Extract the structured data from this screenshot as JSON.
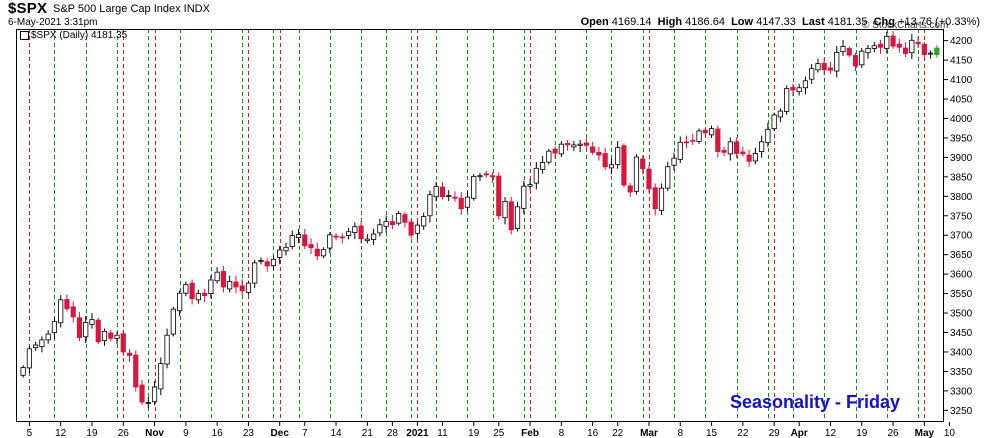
{
  "header": {
    "symbol": "$SPX",
    "name": "S&P 500 Large Cap Index INDX",
    "timestamp": "6-May-2021 3:31pm",
    "watermark": "© StockCharts.com",
    "open_label": "Open",
    "open": "4169.14",
    "high_label": "High",
    "high": "4186.64",
    "low_label": "Low",
    "low": "4147.33",
    "last_label": "Last",
    "last": "4181.35",
    "chg_label": "Chg",
    "chg": "+13.76 (+0.33%)",
    "series_label": "$SPX (Daily) 4181.35"
  },
  "annotation": "Seasonality - Friday",
  "colors": {
    "up": "#ffffff",
    "down": "#d6173f",
    "friday": "#1a8a1a",
    "monday": "#cc2222",
    "last": "#22aa22",
    "annotation": "#1111cc"
  },
  "chart_data": {
    "type": "candlestick",
    "title": "$SPX S&P 500 Large Cap Index INDX",
    "ylim": [
      3220,
      4230
    ],
    "y_ticks": [
      3250,
      3300,
      3350,
      3400,
      3450,
      3500,
      3550,
      3600,
      3650,
      3700,
      3750,
      3800,
      3850,
      3900,
      3950,
      4000,
      4050,
      4100,
      4150,
      4200
    ],
    "x_ticks": [
      {
        "i": 1,
        "label": "5"
      },
      {
        "i": 6,
        "label": "12"
      },
      {
        "i": 11,
        "label": "19"
      },
      {
        "i": 16,
        "label": "26"
      },
      {
        "i": 21,
        "label": "Nov"
      },
      {
        "i": 26,
        "label": "9"
      },
      {
        "i": 31,
        "label": "16"
      },
      {
        "i": 36,
        "label": "23"
      },
      {
        "i": 41,
        "label": "Dec"
      },
      {
        "i": 45,
        "label": "7"
      },
      {
        "i": 50,
        "label": "14"
      },
      {
        "i": 55,
        "label": "21"
      },
      {
        "i": 59,
        "label": "28"
      },
      {
        "i": 63,
        "label": "2021"
      },
      {
        "i": 67,
        "label": "11"
      },
      {
        "i": 72,
        "label": "19"
      },
      {
        "i": 76,
        "label": "25"
      },
      {
        "i": 81,
        "label": "Feb"
      },
      {
        "i": 86,
        "label": "8"
      },
      {
        "i": 91,
        "label": "16"
      },
      {
        "i": 95,
        "label": "22"
      },
      {
        "i": 100,
        "label": "Mar"
      },
      {
        "i": 105,
        "label": "8"
      },
      {
        "i": 110,
        "label": "15"
      },
      {
        "i": 115,
        "label": "22"
      },
      {
        "i": 120,
        "label": "29"
      },
      {
        "i": 124,
        "label": "Apr"
      },
      {
        "i": 129,
        "label": "12"
      },
      {
        "i": 134,
        "label": "19"
      },
      {
        "i": 139,
        "label": "26"
      },
      {
        "i": 144,
        "label": "May"
      },
      {
        "i": 148,
        "label": "10"
      }
    ],
    "friday_lines": [
      5,
      10,
      15,
      20,
      25,
      30,
      35,
      40,
      44,
      49,
      54,
      58,
      62,
      66,
      71,
      75,
      80,
      85,
      90,
      94,
      99,
      104,
      109,
      114,
      119,
      123,
      128,
      133,
      138,
      143
    ],
    "monday_lines": [
      1,
      16,
      21,
      36,
      41,
      63,
      81,
      100,
      120,
      144
    ],
    "closes": [
      3360,
      3408,
      3418,
      3431,
      3446,
      3478,
      3534,
      3511,
      3490,
      3437,
      3476,
      3483,
      3426,
      3453,
      3435,
      3443,
      3400,
      3391,
      3310,
      3271,
      3270,
      3310,
      3370,
      3443,
      3510,
      3551,
      3573,
      3537,
      3550,
      3545,
      3585,
      3605,
      3567,
      3581,
      3567,
      3557,
      3577,
      3629,
      3635,
      3621,
      3638,
      3662,
      3669,
      3699,
      3702,
      3673,
      3668,
      3647,
      3663,
      3701,
      3695,
      3694,
      3709,
      3722,
      3691,
      3690,
      3703,
      3727,
      3735,
      3727,
      3756,
      3733,
      3700,
      3726,
      3748,
      3804,
      3825,
      3799,
      3802,
      3795,
      3768,
      3798,
      3851,
      3853,
      3855,
      3850,
      3750,
      3787,
      3714,
      3773,
      3826,
      3830,
      3872,
      3887,
      3916,
      3911,
      3934,
      3932,
      3932,
      3934,
      3931,
      3913,
      3906,
      3876,
      3881,
      3925,
      3829,
      3811,
      3901,
      3871,
      3819,
      3768,
      3821,
      3876,
      3898,
      3939,
      3939,
      3943,
      3968,
      3963,
      3974,
      3915,
      3913,
      3940,
      3910,
      3909,
      3890,
      3910,
      3940,
      3972,
      4009,
      4019,
      4077,
      4073,
      4079,
      4097,
      4128,
      4141,
      4125,
      4124,
      4170,
      4185,
      4163,
      4135,
      4173,
      4180,
      4187,
      4183,
      4211,
      4186,
      4183,
      4167,
      4201,
      4192,
      4164,
      4168,
      4181
    ]
  }
}
